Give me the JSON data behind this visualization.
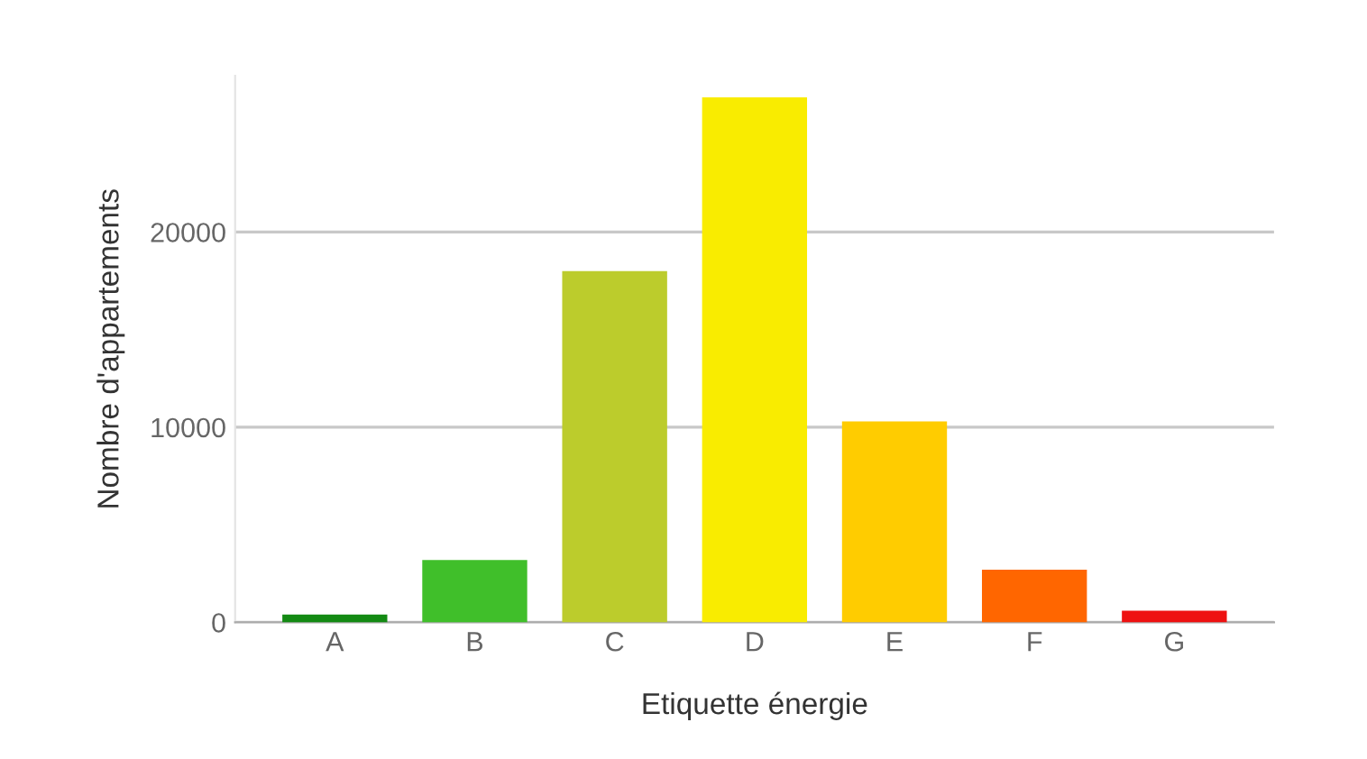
{
  "chart_data": {
    "type": "bar",
    "xlabel": "Etiquette énergie",
    "ylabel": "Nombre d'appartements",
    "categories": [
      "A",
      "B",
      "C",
      "D",
      "E",
      "F",
      "G"
    ],
    "values": [
      400,
      3200,
      18000,
      26900,
      10300,
      2700,
      600
    ],
    "colors": [
      "#138a13",
      "#40bf2a",
      "#bccc2c",
      "#f9ec00",
      "#ffcc00",
      "#ff6600",
      "#ee1111"
    ],
    "ylim": [
      0,
      28000
    ],
    "yticks": [
      0,
      10000,
      20000
    ],
    "grid": "y"
  }
}
